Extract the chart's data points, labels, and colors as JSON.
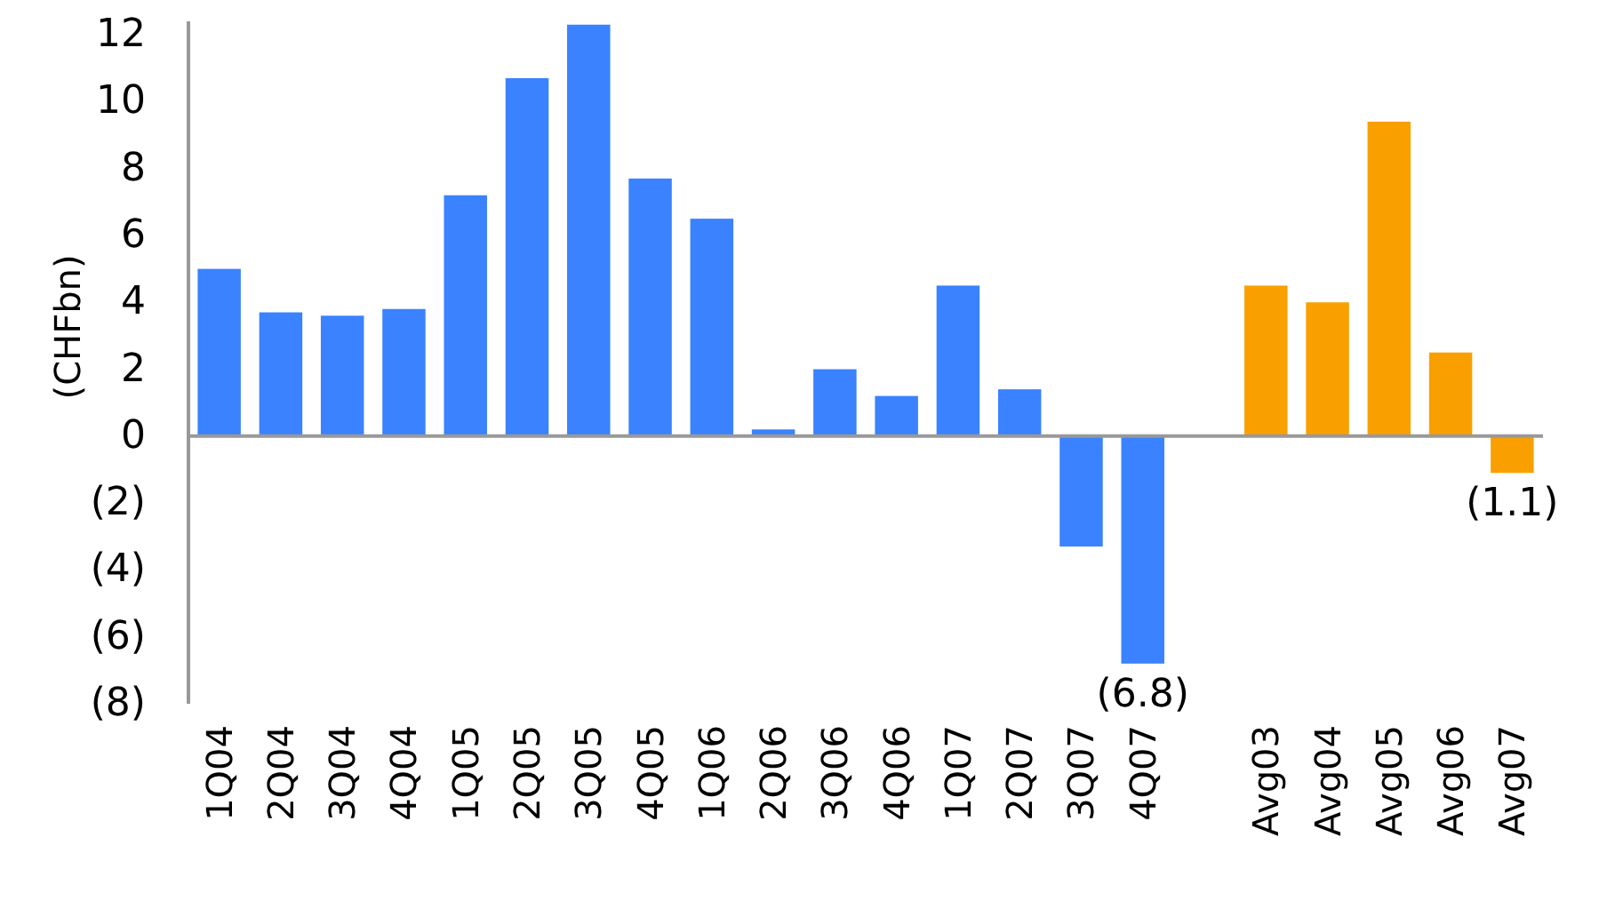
{
  "chart_data": {
    "type": "bar",
    "ylabel": "(CHFbn)",
    "categories": [
      "1Q04",
      "2Q04",
      "3Q04",
      "4Q04",
      "1Q05",
      "2Q05",
      "3Q05",
      "4Q05",
      "1Q06",
      "2Q06",
      "3Q06",
      "4Q06",
      "1Q07",
      "2Q07",
      "3Q07",
      "4Q07",
      null,
      "Avg03",
      "Avg04",
      "Avg05",
      "Avg06",
      "Avg07"
    ],
    "values": [
      5.0,
      3.7,
      3.6,
      3.8,
      7.2,
      10.7,
      12.3,
      7.7,
      6.5,
      0.2,
      2.0,
      1.2,
      4.5,
      1.4,
      -3.3,
      -6.8,
      null,
      4.5,
      4.0,
      9.4,
      2.5,
      -1.1
    ],
    "colors": [
      "#3a82ff",
      "#3a82ff",
      "#3a82ff",
      "#3a82ff",
      "#3a82ff",
      "#3a82ff",
      "#3a82ff",
      "#3a82ff",
      "#3a82ff",
      "#3a82ff",
      "#3a82ff",
      "#3a82ff",
      "#3a82ff",
      "#3a82ff",
      "#3a82ff",
      "#3a82ff",
      null,
      "#f9a000",
      "#f9a000",
      "#f9a000",
      "#f9a000",
      "#f9a000"
    ],
    "value_labels": [
      null,
      null,
      null,
      null,
      null,
      null,
      null,
      null,
      null,
      null,
      null,
      null,
      null,
      null,
      null,
      "(6.8)",
      null,
      null,
      null,
      null,
      null,
      "(1.1)"
    ],
    "ylim": [
      -8,
      12.4
    ],
    "yticks": [
      {
        "value": -8,
        "label": "(8)"
      },
      {
        "value": -6,
        "label": "(6)"
      },
      {
        "value": -4,
        "label": "(4)"
      },
      {
        "value": -2,
        "label": "(2)"
      },
      0,
      2,
      4,
      6,
      8,
      10,
      12
    ]
  }
}
